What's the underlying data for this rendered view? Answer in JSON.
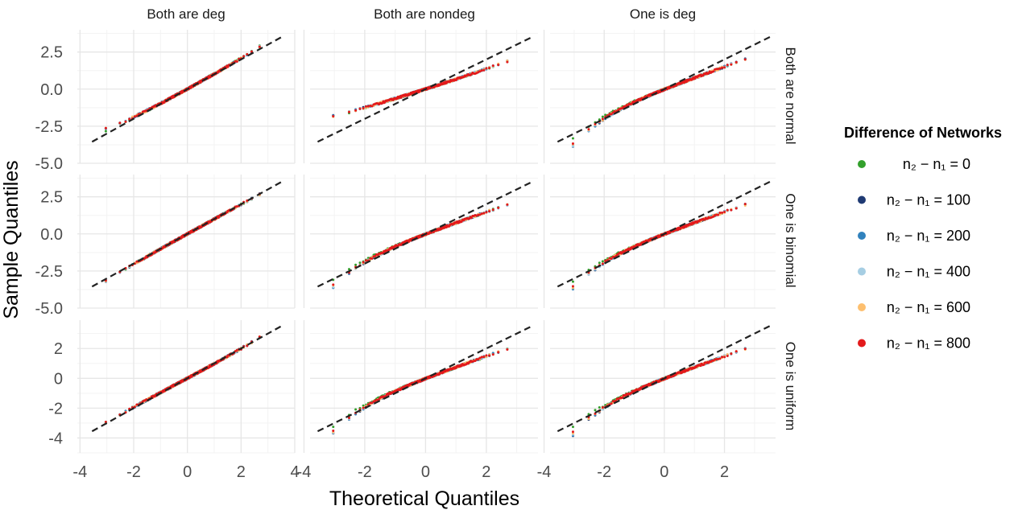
{
  "chart_data": {
    "type": "scatter",
    "subtype": "qq-plot-facet-grid",
    "title": "",
    "xlabel": "Theoretical Quantiles",
    "ylabel": "Sample Quantiles",
    "columns": [
      "Both are deg",
      "Both are nondeg",
      "One is deg"
    ],
    "rows": [
      "Both are normal",
      "One is binomial",
      "One is uniform"
    ],
    "x_ticks_col1": [
      "-4",
      "-2",
      "0",
      "2",
      "4"
    ],
    "x_ticks_other": [
      "-4",
      "-2",
      "0",
      "2"
    ],
    "xlim_col1": [
      -4.1,
      4.0
    ],
    "xlim_other": [
      -3.8,
      3.7
    ],
    "y_ticks_rows12": [
      "2.5",
      "0.0",
      "-2.5",
      "-5.0"
    ],
    "y_ticks_row3": [
      "2",
      "0",
      "-2",
      "-4"
    ],
    "ylim_rows12": [
      -5.0,
      4.0
    ],
    "ylim_row3": [
      -5.0,
      3.9
    ],
    "grid": true,
    "reference_line": "dashed black y = x",
    "legend": {
      "title": "Difference of Networks",
      "position": "right",
      "entries": [
        {
          "label": "n₂ − n₁ = 0",
          "value": 0,
          "color": "#33a02c"
        },
        {
          "label": "n₂ − n₁ = 100",
          "value": 100,
          "color": "#1f3a73"
        },
        {
          "label": "n₂ − n₁ = 200",
          "value": 200,
          "color": "#3182bd"
        },
        {
          "label": "n₂ − n₁ = 400",
          "value": 400,
          "color": "#a6cee3"
        },
        {
          "label": "n₂ − n₁ = 600",
          "value": 600,
          "color": "#fdbf6f"
        },
        {
          "label": "n₂ − n₁ = 800",
          "value": 800,
          "color": "#e31a1c"
        }
      ]
    },
    "panels": [
      {
        "row": "Both are normal",
        "col": "Both are deg",
        "x_range": [
          -3.3,
          3.3
        ],
        "lower_tail_min": -2.6,
        "upper_tail_max": 3.3,
        "central_slope": 1.0
      },
      {
        "row": "Both are normal",
        "col": "Both are nondeg",
        "x_range": [
          -3.3,
          3.3
        ],
        "lower_tail_min": -1.8,
        "upper_tail_max": 2.2,
        "central_slope": 0.65
      },
      {
        "row": "Both are normal",
        "col": "One is deg",
        "x_range": [
          -3.3,
          3.3
        ],
        "lower_tail_min": -4.0,
        "upper_tail_max": 2.3,
        "central_slope": 0.75
      },
      {
        "row": "One is binomial",
        "col": "Both are deg",
        "x_range": [
          -3.3,
          3.3
        ],
        "lower_tail_min": -3.2,
        "upper_tail_max": 3.0,
        "central_slope": 1.0
      },
      {
        "row": "One is binomial",
        "col": "Both are nondeg",
        "x_range": [
          -3.3,
          3.3
        ],
        "lower_tail_min": -3.7,
        "upper_tail_max": 2.2,
        "central_slope": 0.75
      },
      {
        "row": "One is binomial",
        "col": "One is deg",
        "x_range": [
          -3.3,
          3.3
        ],
        "lower_tail_min": -3.8,
        "upper_tail_max": 2.2,
        "central_slope": 0.75
      },
      {
        "row": "One is uniform",
        "col": "Both are deg",
        "x_range": [
          -3.3,
          3.3
        ],
        "lower_tail_min": -3.0,
        "upper_tail_max": 3.2,
        "central_slope": 0.95
      },
      {
        "row": "One is uniform",
        "col": "Both are nondeg",
        "x_range": [
          -3.3,
          3.3
        ],
        "lower_tail_min": -3.8,
        "upper_tail_max": 2.2,
        "central_slope": 0.75
      },
      {
        "row": "One is uniform",
        "col": "One is deg",
        "x_range": [
          -3.3,
          3.3
        ],
        "lower_tail_min": -3.9,
        "upper_tail_max": 2.2,
        "central_slope": 0.75
      }
    ]
  }
}
